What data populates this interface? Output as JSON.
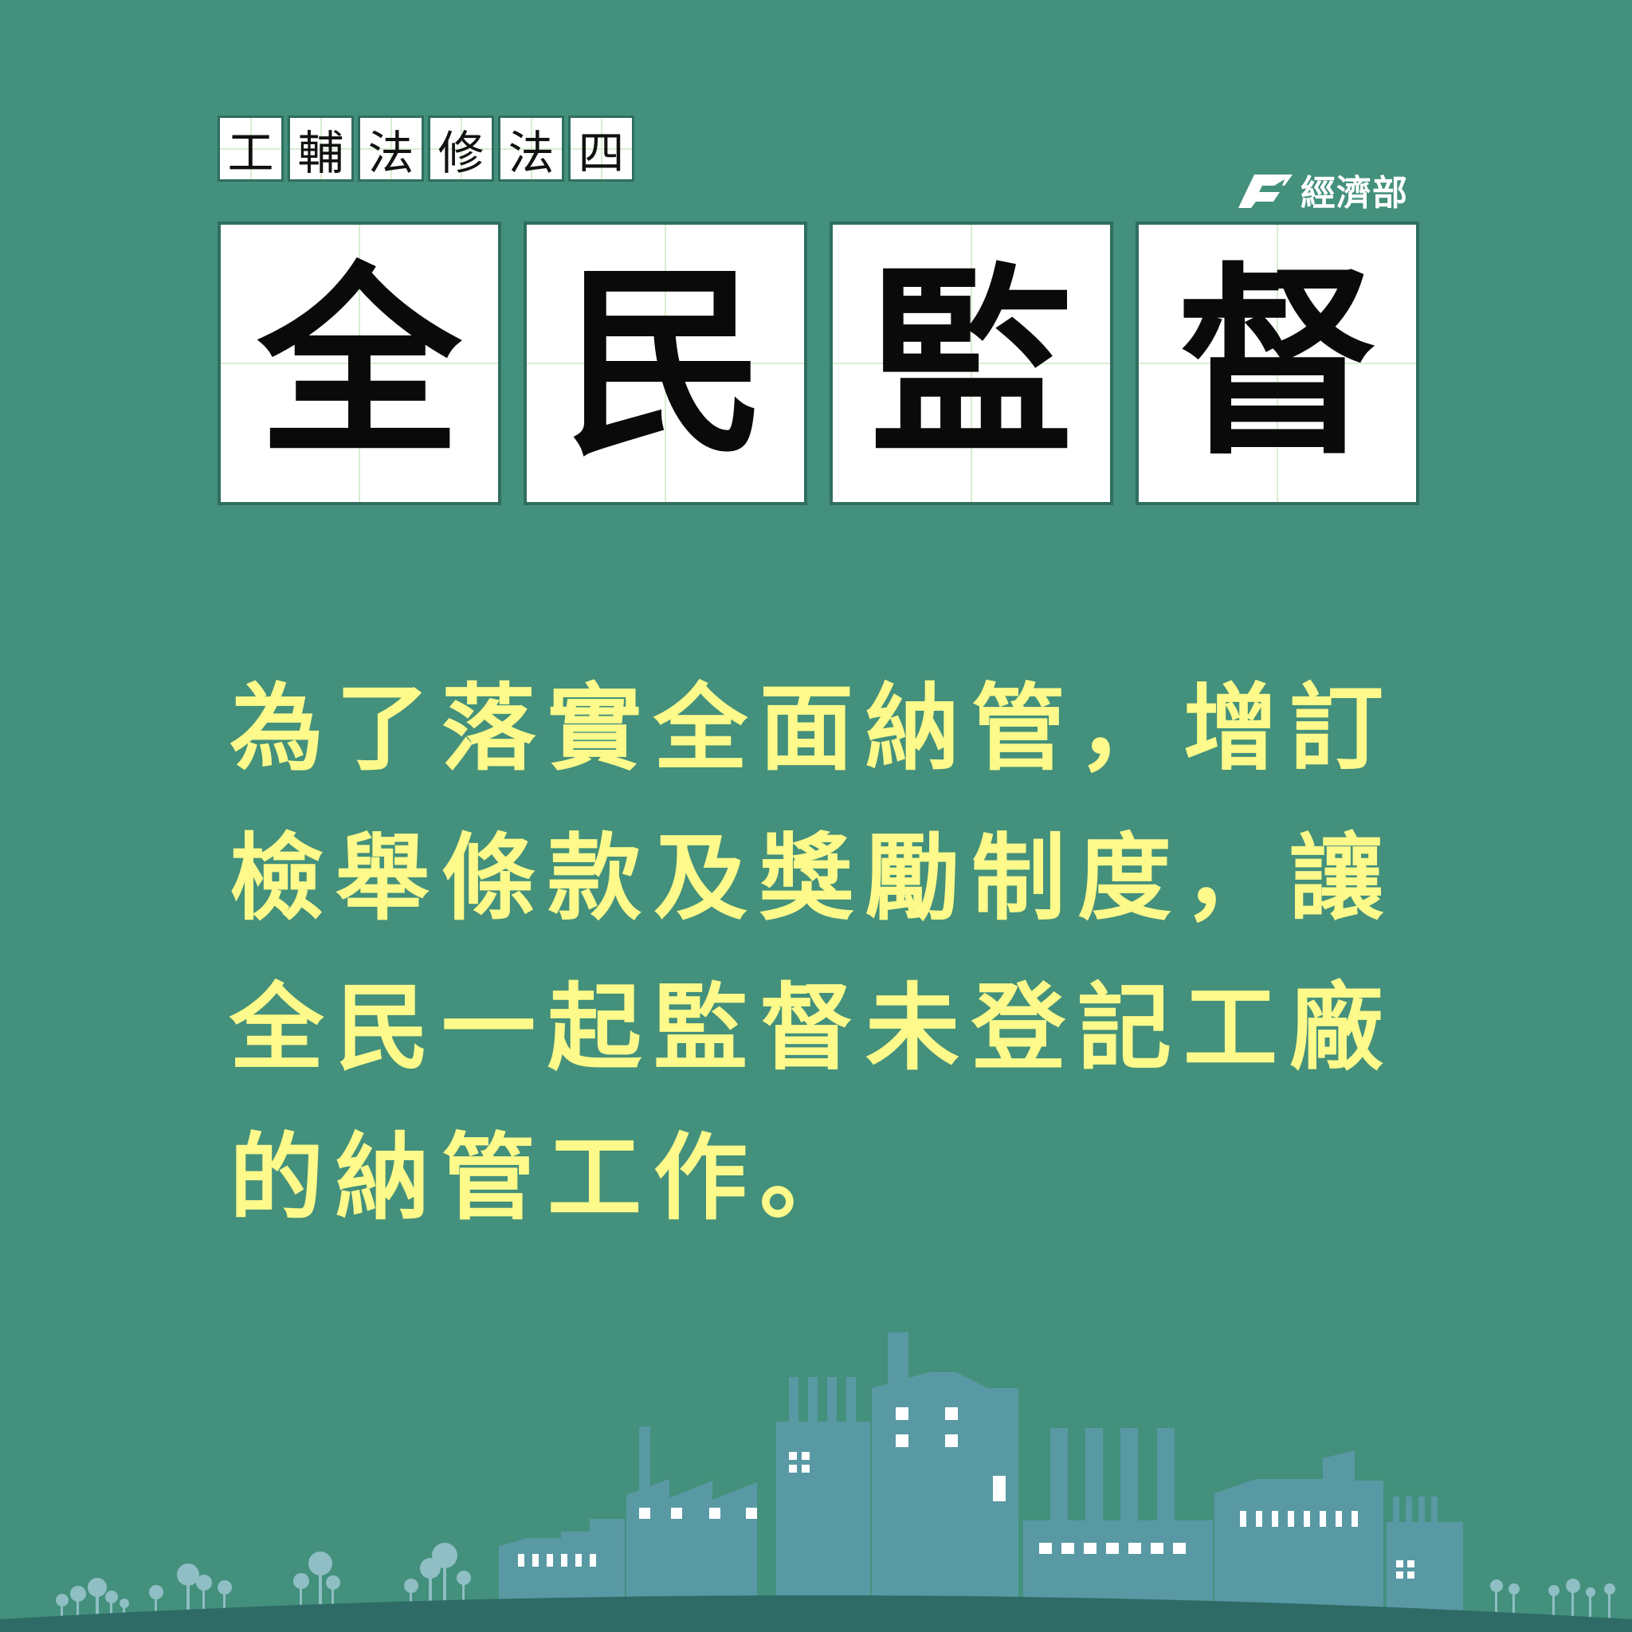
{
  "header": {
    "small_chars": [
      "工",
      "輔",
      "法",
      "修",
      "法",
      "四"
    ],
    "big_chars": [
      "全",
      "民",
      "監",
      "督"
    ]
  },
  "logo": {
    "text": "經濟部"
  },
  "body": {
    "lines": [
      "為了落實全面納管，增訂",
      "檢舉條款及獎勵制度，讓",
      "全民一起監督未登記工廠",
      "的納管工作。"
    ]
  },
  "colors": {
    "background": "#43907c",
    "body_text": "#fdf98a",
    "factory": "#5999a4",
    "ground": "#2e6b66",
    "trees": "#8fbec4"
  }
}
